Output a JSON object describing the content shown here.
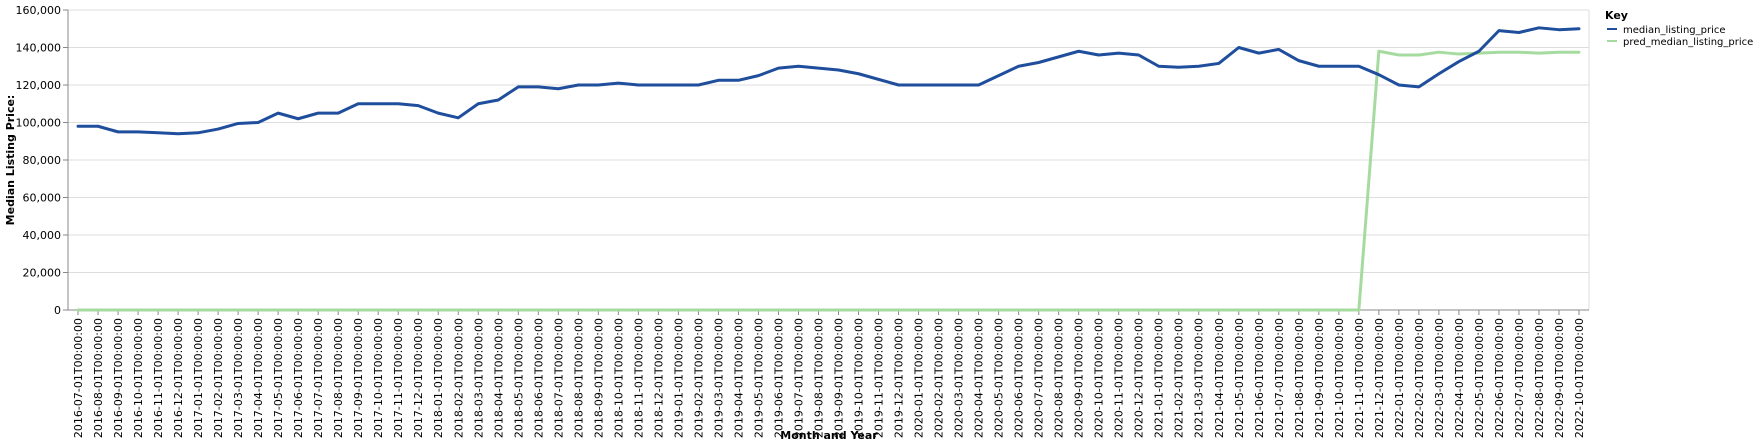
{
  "chart_data": {
    "type": "line",
    "xlabel": "Month and Year",
    "ylabel": "Median Listing Price:",
    "ylim": [
      0,
      160000
    ],
    "yticks": [
      0,
      20000,
      40000,
      60000,
      80000,
      100000,
      120000,
      140000,
      160000
    ],
    "ytick_labels": [
      "0",
      "20,000",
      "40,000",
      "60,000",
      "80,000",
      "100,000",
      "120,000",
      "140,000",
      "160,000"
    ],
    "grid": true,
    "legend_title": "Key",
    "legend_position": "top-right",
    "x": [
      "2016-07-01T00:00:00",
      "2016-08-01T00:00:00",
      "2016-09-01T00:00:00",
      "2016-10-01T00:00:00",
      "2016-11-01T00:00:00",
      "2016-12-01T00:00:00",
      "2017-01-01T00:00:00",
      "2017-02-01T00:00:00",
      "2017-03-01T00:00:00",
      "2017-04-01T00:00:00",
      "2017-05-01T00:00:00",
      "2017-06-01T00:00:00",
      "2017-07-01T00:00:00",
      "2017-08-01T00:00:00",
      "2017-09-01T00:00:00",
      "2017-10-01T00:00:00",
      "2017-11-01T00:00:00",
      "2017-12-01T00:00:00",
      "2018-01-01T00:00:00",
      "2018-02-01T00:00:00",
      "2018-03-01T00:00:00",
      "2018-04-01T00:00:00",
      "2018-05-01T00:00:00",
      "2018-06-01T00:00:00",
      "2018-07-01T00:00:00",
      "2018-08-01T00:00:00",
      "2018-09-01T00:00:00",
      "2018-10-01T00:00:00",
      "2018-11-01T00:00:00",
      "2018-12-01T00:00:00",
      "2019-01-01T00:00:00",
      "2019-02-01T00:00:00",
      "2019-03-01T00:00:00",
      "2019-04-01T00:00:00",
      "2019-05-01T00:00:00",
      "2019-06-01T00:00:00",
      "2019-07-01T00:00:00",
      "2019-08-01T00:00:00",
      "2019-09-01T00:00:00",
      "2019-10-01T00:00:00",
      "2019-11-01T00:00:00",
      "2019-12-01T00:00:00",
      "2020-01-01T00:00:00",
      "2020-02-01T00:00:00",
      "2020-03-01T00:00:00",
      "2020-04-01T00:00:00",
      "2020-05-01T00:00:00",
      "2020-06-01T00:00:00",
      "2020-07-01T00:00:00",
      "2020-08-01T00:00:00",
      "2020-09-01T00:00:00",
      "2020-10-01T00:00:00",
      "2020-11-01T00:00:00",
      "2020-12-01T00:00:00",
      "2021-01-01T00:00:00",
      "2021-02-01T00:00:00",
      "2021-03-01T00:00:00",
      "2021-04-01T00:00:00",
      "2021-05-01T00:00:00",
      "2021-06-01T00:00:00",
      "2021-07-01T00:00:00",
      "2021-08-01T00:00:00",
      "2021-09-01T00:00:00",
      "2021-10-01T00:00:00",
      "2021-11-01T00:00:00",
      "2021-12-01T00:00:00",
      "2022-01-01T00:00:00",
      "2022-02-01T00:00:00",
      "2022-03-01T00:00:00",
      "2022-04-01T00:00:00",
      "2022-05-01T00:00:00",
      "2022-06-01T00:00:00",
      "2022-07-01T00:00:00",
      "2022-08-01T00:00:00",
      "2022-09-01T00:00:00",
      "2022-10-01T00:00:00"
    ],
    "series": [
      {
        "name": "median_listing_price",
        "color": "#1f4e9c",
        "values": [
          98000,
          98000,
          95000,
          95000,
          94500,
          94000,
          94500,
          96500,
          99500,
          100000,
          105000,
          102000,
          105000,
          105000,
          110000,
          110000,
          110000,
          109000,
          105000,
          102500,
          110000,
          112000,
          119000,
          119000,
          118000,
          120000,
          120000,
          121000,
          120000,
          120000,
          120000,
          120000,
          122500,
          122500,
          125000,
          129000,
          130000,
          129000,
          128000,
          126000,
          123000,
          120000,
          120000,
          120000,
          120000,
          120000,
          125000,
          130000,
          132000,
          135000,
          138000,
          136000,
          137000,
          136000,
          130000,
          129500,
          130000,
          131500,
          140000,
          137000,
          139000,
          133000,
          130000,
          130000,
          130000,
          125500,
          120000,
          119000,
          126000,
          132500,
          138000,
          149000,
          148000,
          150500,
          149500,
          150000
        ]
      },
      {
        "name": "pred_median_listing_price",
        "color": "#a6dba0",
        "values": [
          0,
          0,
          0,
          0,
          0,
          0,
          0,
          0,
          0,
          0,
          0,
          0,
          0,
          0,
          0,
          0,
          0,
          0,
          0,
          0,
          0,
          0,
          0,
          0,
          0,
          0,
          0,
          0,
          0,
          0,
          0,
          0,
          0,
          0,
          0,
          0,
          0,
          0,
          0,
          0,
          0,
          0,
          0,
          0,
          0,
          0,
          0,
          0,
          0,
          0,
          0,
          0,
          0,
          0,
          0,
          0,
          0,
          0,
          0,
          0,
          0,
          0,
          0,
          0,
          0,
          138000,
          136000,
          136000,
          137500,
          136500,
          137000,
          137500,
          137500,
          137000,
          137500,
          137500
        ]
      }
    ]
  }
}
